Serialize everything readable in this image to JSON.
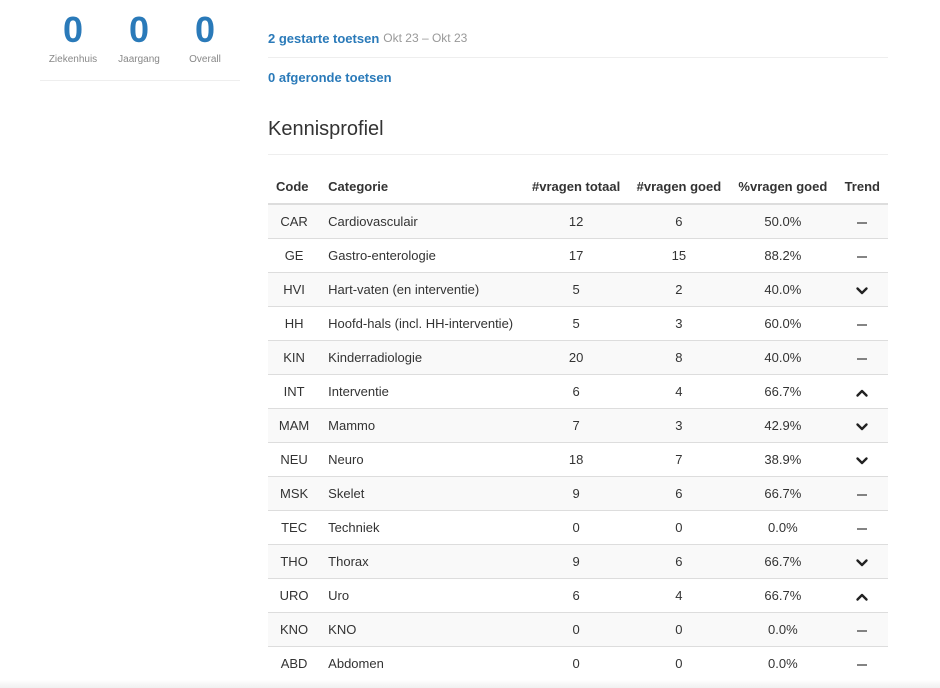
{
  "stats": [
    {
      "value": "0",
      "label": "Ziekenhuis"
    },
    {
      "value": "0",
      "label": "Jaargang"
    },
    {
      "value": "0",
      "label": "Overall"
    }
  ],
  "toetsen": {
    "gestart_label": "2 gestarte toetsen",
    "gestart_dates": "Okt 23 – Okt 23",
    "afgerond_label": "0 afgeronde toetsen"
  },
  "kennisprofiel": {
    "title": "Kennisprofiel",
    "headers": {
      "code": "Code",
      "categorie": "Categorie",
      "totaal": "#vragen totaal",
      "goed": "#vragen goed",
      "pct": "%vragen goed",
      "trend": "Trend"
    },
    "rows": [
      {
        "code": "CAR",
        "categorie": "Cardiovasculair",
        "totaal": "12",
        "goed": "6",
        "pct": "50.0%",
        "trend": "flat"
      },
      {
        "code": "GE",
        "categorie": "Gastro-enterologie",
        "totaal": "17",
        "goed": "15",
        "pct": "88.2%",
        "trend": "flat"
      },
      {
        "code": "HVI",
        "categorie": "Hart-vaten (en interventie)",
        "totaal": "5",
        "goed": "2",
        "pct": "40.0%",
        "trend": "down"
      },
      {
        "code": "HH",
        "categorie": "Hoofd-hals (incl. HH-interventie)",
        "totaal": "5",
        "goed": "3",
        "pct": "60.0%",
        "trend": "flat"
      },
      {
        "code": "KIN",
        "categorie": "Kinderradiologie",
        "totaal": "20",
        "goed": "8",
        "pct": "40.0%",
        "trend": "flat"
      },
      {
        "code": "INT",
        "categorie": "Interventie",
        "totaal": "6",
        "goed": "4",
        "pct": "66.7%",
        "trend": "up"
      },
      {
        "code": "MAM",
        "categorie": "Mammo",
        "totaal": "7",
        "goed": "3",
        "pct": "42.9%",
        "trend": "down"
      },
      {
        "code": "NEU",
        "categorie": "Neuro",
        "totaal": "18",
        "goed": "7",
        "pct": "38.9%",
        "trend": "down"
      },
      {
        "code": "MSK",
        "categorie": "Skelet",
        "totaal": "9",
        "goed": "6",
        "pct": "66.7%",
        "trend": "flat"
      },
      {
        "code": "TEC",
        "categorie": "Techniek",
        "totaal": "0",
        "goed": "0",
        "pct": "0.0%",
        "trend": "flat"
      },
      {
        "code": "THO",
        "categorie": "Thorax",
        "totaal": "9",
        "goed": "6",
        "pct": "66.7%",
        "trend": "down"
      },
      {
        "code": "URO",
        "categorie": "Uro",
        "totaal": "6",
        "goed": "4",
        "pct": "66.7%",
        "trend": "up"
      },
      {
        "code": "KNO",
        "categorie": "KNO",
        "totaal": "0",
        "goed": "0",
        "pct": "0.0%",
        "trend": "flat"
      },
      {
        "code": "ABD",
        "categorie": "Abdomen",
        "totaal": "0",
        "goed": "0",
        "pct": "0.0%",
        "trend": "flat"
      }
    ]
  },
  "colors": {
    "accent": "#2a7ab9",
    "muted": "#999999",
    "stripe": "#f9f9f9"
  }
}
